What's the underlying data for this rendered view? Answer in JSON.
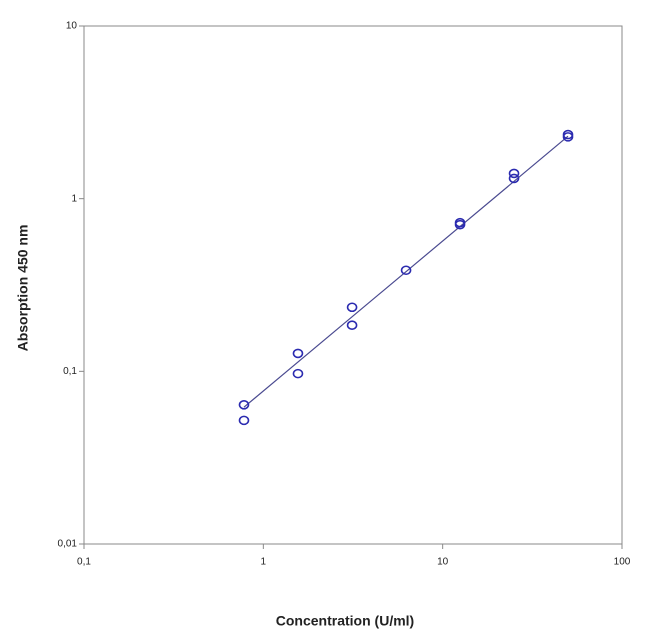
{
  "chart_data": {
    "type": "scatter",
    "x_label": "Concentration (U/ml)",
    "y_label": "Absorption 450 nm",
    "x": [
      0.78,
      0.78,
      1.56,
      1.56,
      3.125,
      3.125,
      6.25,
      12.5,
      12.5,
      25,
      25,
      50,
      50
    ],
    "values": [
      0.064,
      0.052,
      0.127,
      0.097,
      0.235,
      0.185,
      0.385,
      0.726,
      0.707,
      1.4,
      1.31,
      2.35,
      2.28
    ],
    "color": "#2b2bb0",
    "fit_x": [
      0.78,
      50
    ],
    "fit_y": [
      0.062,
      2.3
    ],
    "fit_color": "#4a4a90",
    "xscale": "log",
    "yscale": "log",
    "xlim": [
      0.1,
      100
    ],
    "ylim": [
      0.01,
      10
    ],
    "xticks": [
      {
        "value": 0.1,
        "label": "0,1"
      },
      1,
      10,
      100
    ],
    "yticks": [
      {
        "value": 0.01,
        "label": "0,01"
      },
      {
        "value": 0.1,
        "label": "0,1"
      },
      1,
      10
    ]
  }
}
